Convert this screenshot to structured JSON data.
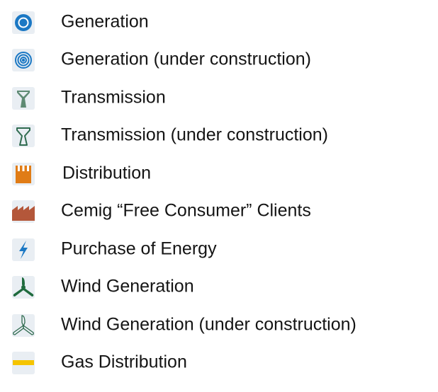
{
  "legend": {
    "items": [
      "Generation",
      "Generation (under construction)",
      "Transmission",
      "Transmission (under construction)",
      "Distribution",
      "Cemig “Free Consumer” Clients",
      "Purchase of Energy",
      "Wind Generation",
      "Wind Generation (under construction)",
      "Gas Distribution"
    ]
  }
}
